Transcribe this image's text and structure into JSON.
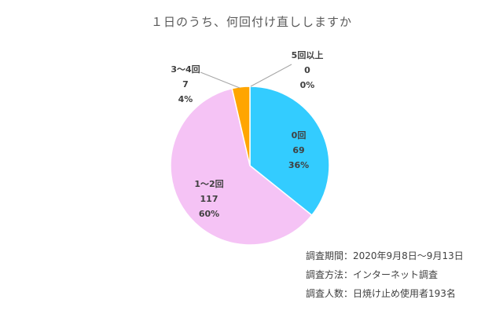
{
  "chart_data": {
    "type": "pie",
    "title": "１日のうち、何回付け直ししますか",
    "slices": [
      {
        "label": "0回",
        "count": "69",
        "percent": "36%",
        "value": 69,
        "color": "#33CCFF"
      },
      {
        "label": "1～2回",
        "count": "117",
        "percent": "60%",
        "value": 117,
        "color": "#F5C3F5"
      },
      {
        "label": "3～4回",
        "count": "7",
        "percent": "4%",
        "value": 7,
        "color": "#FFA500"
      },
      {
        "label": "5回以上",
        "count": "0",
        "percent": "0%",
        "value": 0,
        "color": "#7F7F7F"
      }
    ]
  },
  "notes": {
    "period": "調査期間：2020年9月8日～9月13日",
    "method": "調査方法：インターネット調査",
    "respondents": "調査人数：日焼け止め使用者193名"
  }
}
